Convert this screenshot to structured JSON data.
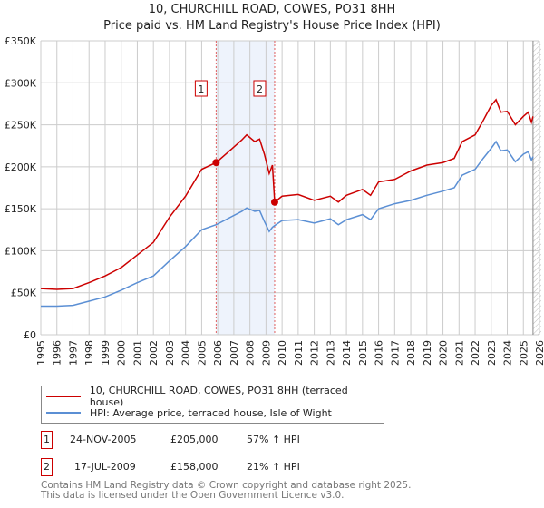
{
  "title": "10, CHURCHILL ROAD, COWES, PO31 8HH",
  "subtitle": "Price paid vs. HM Land Registry's House Price Index (HPI)",
  "colors": {
    "property": "#cc0000",
    "hpi": "#5b8fd4",
    "shade": "#eef3fc"
  },
  "chart_data": {
    "type": "line",
    "ylim": [
      0,
      350000
    ],
    "xlim": [
      1995,
      2026
    ],
    "yticks": [
      "£0",
      "£50K",
      "£100K",
      "£150K",
      "£200K",
      "£250K",
      "£300K",
      "£350K"
    ],
    "xticks": [
      "1995",
      "1996",
      "1997",
      "1998",
      "1999",
      "2000",
      "2001",
      "2002",
      "2003",
      "2004",
      "2005",
      "2006",
      "2007",
      "2008",
      "2009",
      "2010",
      "2011",
      "2012",
      "2013",
      "2014",
      "2015",
      "2016",
      "2017",
      "2018",
      "2019",
      "2020",
      "2021",
      "2022",
      "2023",
      "2024",
      "2025",
      "2026"
    ],
    "shaded_range": [
      2005.9,
      2009.54
    ],
    "hatched_from": 2025.6,
    "series": [
      {
        "name": "10, CHURCHILL ROAD, COWES, PO31 8HH (terraced house)",
        "x": [
          1995,
          1996,
          1997,
          1998,
          1999,
          2000,
          2001,
          2002,
          2003,
          2004,
          2005,
          2005.9,
          2006.5,
          2007.5,
          2007.8,
          2008.3,
          2008.6,
          2008.9,
          2009.2,
          2009.4,
          2009.54,
          2010,
          2011,
          2012,
          2013,
          2013.5,
          2014,
          2015,
          2015.5,
          2016,
          2017,
          2017.5,
          2018,
          2019,
          2020,
          2020.7,
          2021.2,
          2022,
          2022.5,
          2023,
          2023.3,
          2023.6,
          2024,
          2024.5,
          2025,
          2025.3,
          2025.5,
          2025.6
        ],
        "values": [
          55,
          54,
          55,
          62,
          70,
          80,
          95,
          110,
          140,
          165,
          197,
          205,
          215,
          232,
          238,
          230,
          233,
          215,
          192,
          202,
          158,
          165,
          167,
          160,
          165,
          158,
          166,
          173,
          166,
          182,
          185,
          190,
          195,
          202,
          205,
          210,
          230,
          238,
          255,
          273,
          280,
          265,
          266,
          250,
          260,
          265,
          253,
          260
        ]
      },
      {
        "name": "HPI: Average price, terraced house, Isle of Wight",
        "x": [
          1995,
          1996,
          1997,
          1998,
          1999,
          2000,
          2001,
          2002,
          2003,
          2004,
          2005,
          2005.9,
          2006.5,
          2007.5,
          2007.8,
          2008.3,
          2008.6,
          2008.9,
          2009.2,
          2009.4,
          2009.54,
          2010,
          2011,
          2012,
          2013,
          2013.5,
          2014,
          2015,
          2015.5,
          2016,
          2017,
          2017.5,
          2018,
          2019,
          2020,
          2020.7,
          2021.2,
          2022,
          2022.5,
          2023,
          2023.3,
          2023.6,
          2024,
          2024.5,
          2025,
          2025.3,
          2025.5,
          2025.6
        ],
        "values": [
          34,
          34,
          35,
          40,
          45,
          53,
          62,
          70,
          88,
          105,
          125,
          131,
          137,
          147,
          151,
          147,
          148,
          135,
          123,
          128,
          130,
          136,
          137,
          133,
          138,
          131,
          137,
          143,
          137,
          150,
          156,
          158,
          160,
          166,
          171,
          175,
          190,
          197,
          210,
          222,
          230,
          219,
          220,
          206,
          215,
          218,
          208,
          212
        ]
      }
    ],
    "sales": [
      {
        "label": "1",
        "x": 2005.9,
        "value": 205000
      },
      {
        "label": "2",
        "x": 2009.54,
        "value": 158000
      }
    ]
  },
  "legend": [
    "10, CHURCHILL ROAD, COWES, PO31 8HH (terraced house)",
    "HPI: Average price, terraced house, Isle of Wight"
  ],
  "transactions": [
    {
      "num": "1",
      "date": "24-NOV-2005",
      "price": "£205,000",
      "hpi": "57% ↑ HPI"
    },
    {
      "num": "2",
      "date": "17-JUL-2009",
      "price": "£158,000",
      "hpi": "21% ↑ HPI"
    }
  ],
  "footer": [
    "Contains HM Land Registry data © Crown copyright and database right 2025.",
    "This data is licensed under the Open Government Licence v3.0."
  ]
}
